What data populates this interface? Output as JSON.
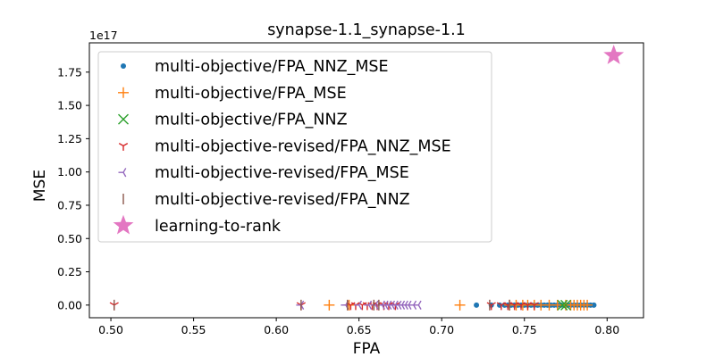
{
  "chart_data": {
    "type": "scatter",
    "title": "synapse-1.1_synapse-1.1",
    "xlabel": "FPA",
    "ylabel": "MSE",
    "xlim": [
      0.487,
      0.822
    ],
    "ylim": [
      -9500000000000000.0,
      1.97e+17
    ],
    "y_offset_label": "1e17",
    "x_ticks": [
      0.5,
      0.55,
      0.6,
      0.65,
      0.7,
      0.75,
      0.8
    ],
    "x_tick_labels": [
      "0.50",
      "0.55",
      "0.60",
      "0.65",
      "0.70",
      "0.75",
      "0.80"
    ],
    "y_ticks": [
      0,
      2.5e+16,
      5e+16,
      7.5e+16,
      1e+17,
      1.25e+17,
      1.5e+17,
      1.75e+17
    ],
    "y_tick_labels": [
      "0.00",
      "0.25",
      "0.50",
      "0.75",
      "1.00",
      "1.25",
      "1.50",
      "1.75"
    ],
    "grid": false,
    "legend_position": "top-left",
    "series": [
      {
        "name": "multi-objective/FPA_NNZ_MSE",
        "marker": "dot",
        "color": "#1f77b4",
        "x": [
          0.721,
          0.73,
          0.735,
          0.738,
          0.74,
          0.742,
          0.744,
          0.746,
          0.748,
          0.75,
          0.752,
          0.754,
          0.756,
          0.758,
          0.76,
          0.762,
          0.764,
          0.766,
          0.768,
          0.77,
          0.772,
          0.774,
          0.776,
          0.778,
          0.78,
          0.782,
          0.784,
          0.786,
          0.788,
          0.79,
          0.792
        ],
        "y": [
          0,
          0,
          0,
          0,
          0,
          0,
          0,
          0,
          0,
          0,
          0,
          0,
          0,
          0,
          0,
          0,
          0,
          0,
          0,
          0,
          0,
          0,
          0,
          0,
          0,
          0,
          0,
          0,
          0,
          0,
          0
        ]
      },
      {
        "name": "multi-objective/FPA_MSE",
        "marker": "plus",
        "color": "#ff7f0e",
        "x": [
          0.632,
          0.644,
          0.711,
          0.741,
          0.745,
          0.749,
          0.752,
          0.756,
          0.76,
          0.765,
          0.77,
          0.775,
          0.778,
          0.78,
          0.782,
          0.784,
          0.786,
          0.788
        ],
        "y": [
          0,
          0,
          0,
          0,
          0,
          0,
          0,
          0,
          0,
          0,
          0,
          0,
          0,
          0,
          0,
          0,
          0,
          0
        ]
      },
      {
        "name": "multi-objective/FPA_NNZ",
        "marker": "x",
        "color": "#2ca02c",
        "x": [
          0.773,
          0.775
        ],
        "y": [
          0,
          0
        ]
      },
      {
        "name": "multi-objective-revised/FPA_NNZ_MSE",
        "marker": "tri_down",
        "color": "#d62728",
        "x": [
          0.502,
          0.615,
          0.645,
          0.648,
          0.652,
          0.655,
          0.658,
          0.661,
          0.665,
          0.668,
          0.672,
          0.73,
          0.736,
          0.74,
          0.744,
          0.748,
          0.752,
          0.756
        ],
        "y": [
          0,
          0,
          0,
          0,
          0,
          0,
          0,
          0,
          0,
          0,
          0,
          0,
          0,
          0,
          0,
          0,
          0,
          0
        ]
      },
      {
        "name": "multi-objective-revised/FPA_MSE",
        "marker": "tri_left",
        "color": "#9467bd",
        "x": [
          0.615,
          0.642,
          0.65,
          0.656,
          0.66,
          0.664,
          0.666,
          0.668,
          0.67,
          0.672,
          0.674,
          0.676,
          0.678,
          0.68,
          0.683,
          0.686
        ],
        "y": [
          0,
          0,
          0,
          0,
          0,
          0,
          0,
          0,
          0,
          0,
          0,
          0,
          0,
          0,
          0,
          0
        ]
      },
      {
        "name": "multi-objective-revised/FPA_NNZ",
        "marker": "vline",
        "color": "#8c564b",
        "x": [
          0.502,
          0.615,
          0.643,
          0.659,
          0.662,
          0.729,
          0.741
        ],
        "y": [
          0,
          0,
          0,
          0,
          0,
          0,
          0
        ]
      },
      {
        "name": "learning-to-rank",
        "marker": "star",
        "color": "#e377c2",
        "x": [
          0.804
        ],
        "y": [
          1.875e+17
        ]
      }
    ]
  }
}
